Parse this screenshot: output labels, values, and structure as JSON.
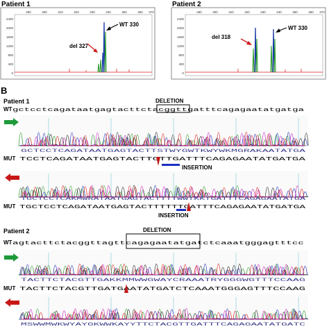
{
  "panel_a": {
    "patient1": {
      "title": "Patient 1",
      "x_ticks": [
        "290",
        "300",
        "310",
        "320",
        "330",
        "340",
        "350",
        "360",
        "370"
      ],
      "y_ticks": [
        "2400",
        "2000",
        "1600",
        "1200",
        "800",
        "400",
        "0"
      ],
      "label_del": "del 327",
      "label_wt": "WT 330"
    },
    "patient2": {
      "title": "Patient 2",
      "x_ticks": [
        "290",
        "300",
        "310",
        "320",
        "330",
        "340",
        "350",
        "360",
        "370"
      ],
      "y_ticks": [
        "2400",
        "2000",
        "1600",
        "1200",
        "800",
        "400",
        "0"
      ],
      "label_del": "del 318",
      "label_wt": "WT 330"
    }
  },
  "panel_b": {
    "letter": "B",
    "patient1": {
      "title": "Patient 1",
      "deletion_label": "DELETION",
      "wt_label": "WT",
      "wt_seq": "gctcctcagataatgagtacttctacggttgatttcagagaatatgatga",
      "trace1_bases": "GCTCCTCAGATAATGAGTACTTSTWYGWTKWYWKMGRAKAATATGA",
      "mut1_label": "MUT",
      "mut1_seq": "TCCTCAGATAATGAGTACTTCTTGATTTCAGAGAATATGATGA",
      "insertion_label": "INSERTION",
      "trace2_bases": "TGCTCCTCAKMWRATAATGAGTACTTTTWWTKKTGATTTCAGAGAATATGA",
      "mut2_label": "MUT",
      "mut2_seq": "TGCTCCTCAGATAATGAGTACTTTTTTGATTTCAGAGAATATGATGA"
    },
    "patient2": {
      "title": "Patient 2",
      "deletion_label": "DELETION",
      "wt_label": "WT",
      "wt_seq": "agtacttctacggttagttcagagaatatgatctcaaatgggagtttcc",
      "trace1_bases": "TACTTCTACGTTGAKKMMWWGWAYCRAAATRYGGGWGTTTCCAAG",
      "mut_label": "MUT",
      "mut_seq": "TACTTCTACGTTGATGAATATGATCTCAAATGGGAGTTTCCAAG",
      "trace2_bases": "MSWWMWKWYAYGKWWKAYYTTCTACGTTGATTTCAGAGAATATGATC"
    }
  }
}
